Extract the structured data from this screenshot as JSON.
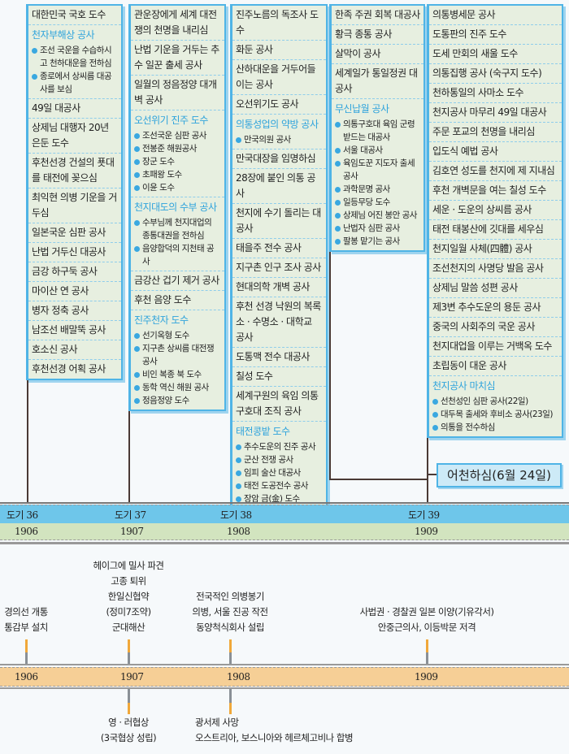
{
  "colors": {
    "heading": "#2ea3dc",
    "box_bg": "#e7efe0",
    "border": "#4fb4e6",
    "dogi_band": "#6ec6ea",
    "year_band": "#d2e4bf",
    "history_band": "#f6cf96",
    "tick_orange": "#f0a83a"
  },
  "columns": [
    {
      "entries": [
        {
          "text": "대한민국 국호 도수"
        },
        {
          "heading": "천자부해상 공사",
          "bullets": [
            "조선 국운을 수습하시고 천하대운을 전하심",
            "종로에서 상씨름 대공사를 보심"
          ]
        },
        {
          "text": "49일 대공사"
        },
        {
          "text": "상제님 대행자 20년 은둔 도수"
        },
        {
          "text": "후천선경 건설의 푯대를 태전에 꽂으심"
        },
        {
          "text": "최익현 의병 기운을 거두심"
        },
        {
          "text": "일본국운 심판 공사"
        },
        {
          "text": "난법 거두신 대공사"
        },
        {
          "text": "금강 하구둑 공사"
        },
        {
          "text": "마이산 연 공사"
        },
        {
          "text": "병자 정축 공사"
        },
        {
          "text": "남조선 배말뚝 공사"
        },
        {
          "text": "호소신 공사"
        },
        {
          "text": "후천선경 어획 공사"
        }
      ]
    },
    {
      "entries": [
        {
          "text": "관운장에게 세계 대전쟁의 천명을 내리심"
        },
        {
          "text": "난법 기운을 거두는 추수 일꾼 출세 공사"
        },
        {
          "text": "일월의 정음정양 대개벽 공사"
        },
        {
          "heading": "오선위기 진주 도수",
          "bullets": [
            "조선국운 심판 공사",
            "전봉준 해원공사",
            "장군 도수",
            "초패왕 도수",
            "이윤 도수"
          ]
        },
        {
          "heading": "천지대도의 수부 공사",
          "bullets": [
            "수부님께 천지대업의 종통대권을 전하심",
            "음양합덕의 지천태 공사"
          ]
        },
        {
          "text": "금강산 겁기 제거 공사"
        },
        {
          "text": "후천 음양 도수"
        },
        {
          "heading": "진주천자 도수",
          "bullets": [
            "선기옥형 도수",
            "지구촌 상씨름 대전쟁 공사",
            "비인 복종 북 도수",
            "동학 역신 해원 공사",
            "정음정양 도수"
          ]
        }
      ]
    },
    {
      "entries": [
        {
          "text": "진주노름의 독조사 도수"
        },
        {
          "text": "화둔 공사"
        },
        {
          "text": "산하대운을 거두어들이는 공사"
        },
        {
          "text": "오선위기도 공사"
        },
        {
          "heading": "의통성업의 약방 공사",
          "bullets": [
            "만국의원 공사"
          ]
        },
        {
          "text": "만국대장을 임명하심"
        },
        {
          "text": "28장에 붙인 의통 공사"
        },
        {
          "text": "천지에 수기 돌리는 대공사"
        },
        {
          "text": "태을주 전수 공사"
        },
        {
          "text": "지구촌 인구 조사 공사"
        },
        {
          "text": "현대의학 개벽 공사"
        },
        {
          "text": "후천 선경 낙원의 복록소 · 수명소 · 대학교 공사"
        },
        {
          "text": "도통맥 전수 대공사"
        },
        {
          "text": "칠성 도수"
        },
        {
          "text": "세계구원의 육임 의통 구호대 조직 공사"
        },
        {
          "heading": "태전콩밭 도수",
          "bullets": [
            "추수도운의 진주 공사",
            "군산 전쟁 공사",
            "임피 술산 대공사",
            "태전 도공전수 공사",
            "장암 금(金) 도수"
          ]
        }
      ]
    },
    {
      "entries": [
        {
          "text": "한족 주권 회복 대공사"
        },
        {
          "text": "황극 종통 공사"
        },
        {
          "text": "살막이 공사"
        },
        {
          "text": "세계일가 통일정권 대공사"
        },
        {
          "heading": "무신납월 공사",
          "bullets": [
            "의통구호대 육임 군령 받드는 대공사",
            "서울 대공사",
            "육임도꾼 지도자 출세 공사",
            "과학문명 공사",
            "일등무당 도수",
            "상제님 어진 봉안 공사",
            "난법자 심판 공사",
            "팔봉 맡기는 공사"
          ]
        }
      ]
    },
    {
      "entries": [
        {
          "text": "의통병세문 공사"
        },
        {
          "text": "도통판의 진주 도수"
        },
        {
          "text": "도세 만회의 새울 도수"
        },
        {
          "text": "의통집행 공사 (숙구지 도수)"
        },
        {
          "text": "천하통일의 사마소 도수"
        },
        {
          "text": "천지공사 마무리 49일 대공사"
        },
        {
          "text": "주문 포교의 천명을 내리심"
        },
        {
          "text": "입도식 예법 공사"
        },
        {
          "text": "김호연 성도를 천지에 제 지내심"
        },
        {
          "text": "후천 개벽문을 여는 칠성 도수"
        },
        {
          "text": "세운 · 도운의 상씨름 공사"
        },
        {
          "text": "태전 태봉산에 깃대를 세우심"
        },
        {
          "text": "천지일월 사체(四體) 공사"
        },
        {
          "text": "조선천지의 사명당 발음 공사"
        },
        {
          "text": "상제님 말씀 성편 공사"
        },
        {
          "text": "제3변 추수도운의 용둔 공사"
        },
        {
          "text": "중국의 사회주의 국운 공사"
        },
        {
          "text": "천지대업을 이루는 거백옥 도수"
        },
        {
          "text": "초립동이 대운 공사"
        },
        {
          "heading": "천지공사 마치심",
          "bullets": [
            "선천성인 심판 공사(22일)",
            "대두목 출세와 후비소 공사(23일)",
            "의통을 전수하심"
          ]
        }
      ]
    }
  ],
  "final_event": "어천하심(6월 24일)",
  "dogi_labels": [
    "도기 36",
    "도기 37",
    "도기 38",
    "도기 39"
  ],
  "years": [
    "1906",
    "1907",
    "1908",
    "1909"
  ],
  "history": {
    "above": [
      "경의선 개통\n통감부 설치",
      "헤이그에 밀사 파견\n고종 퇴위\n한일신협약\n(정미7조약)\n군대해산",
      "전국적인 의병봉기\n의병, 서울 진공 작전\n동양척식회사 설립",
      "사법권 · 경찰권 일본 이양(기유각서)\n안중근의사, 이등박문 저격"
    ],
    "below": [
      "",
      "영 · 러협상\n(3국협상 성립)",
      "광서제 사망\n오스트리아, 보스니아와 헤르체고비나 합병",
      ""
    ]
  }
}
